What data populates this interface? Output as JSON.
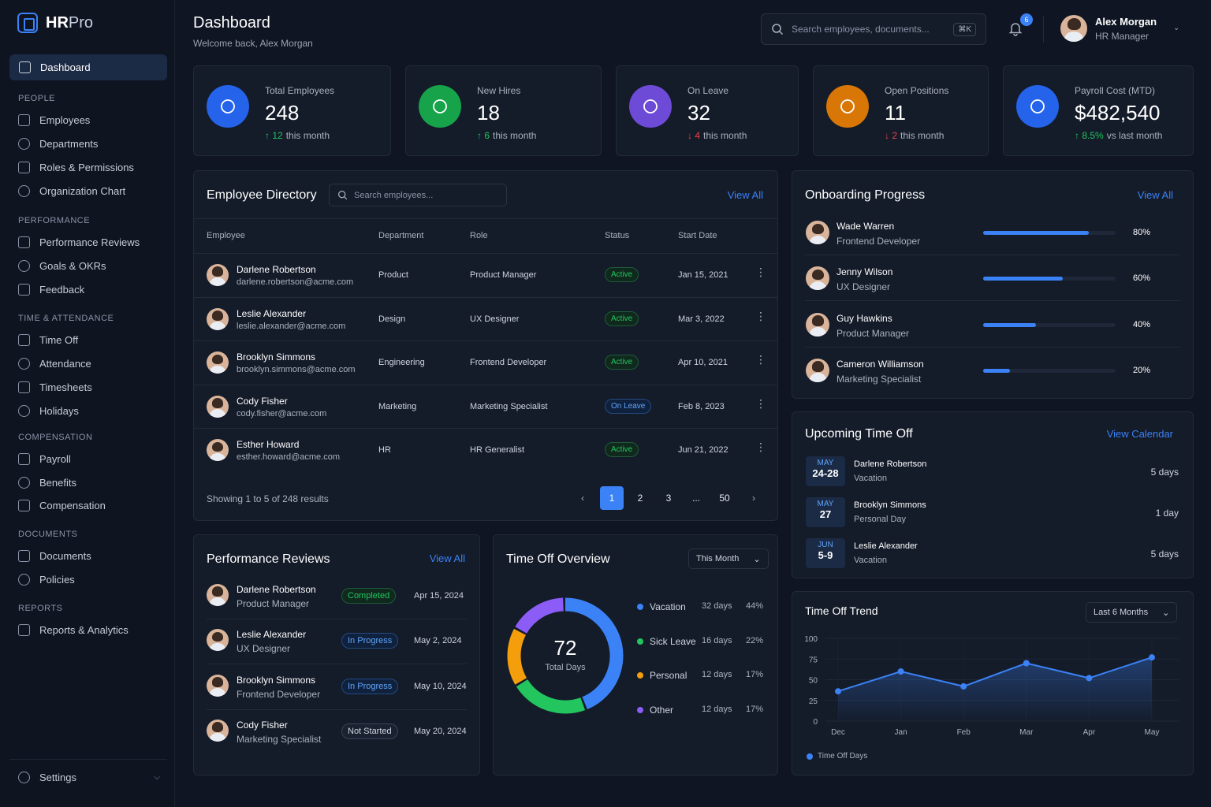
{
  "brand": {
    "name_bold": "HR",
    "name_light": "Pro"
  },
  "nav": {
    "active": "Dashboard",
    "sections": [
      {
        "title": "PEOPLE",
        "items": [
          "Employees",
          "Departments",
          "Roles & Permissions",
          "Organization Chart"
        ]
      },
      {
        "title": "PERFORMANCE",
        "items": [
          "Performance Reviews",
          "Goals & OKRs",
          "Feedback"
        ]
      },
      {
        "title": "TIME & ATTENDANCE",
        "items": [
          "Time Off",
          "Attendance",
          "Timesheets",
          "Holidays"
        ]
      },
      {
        "title": "COMPENSATION",
        "items": [
          "Payroll",
          "Benefits",
          "Compensation"
        ]
      },
      {
        "title": "DOCUMENTS",
        "items": [
          "Documents",
          "Policies"
        ]
      },
      {
        "title": "REPORTS",
        "items": [
          "Reports & Analytics"
        ]
      }
    ],
    "settings": "Settings"
  },
  "header": {
    "title": "Dashboard",
    "subtitle": "Welcome back, Alex Morgan",
    "search_placeholder": "Search employees, documents...",
    "shortcut": "⌘K",
    "notifications": "6",
    "user_name": "Alex Morgan",
    "user_role": "HR Manager"
  },
  "stats": [
    {
      "label": "Total Employees",
      "value": "248",
      "delta": "12",
      "delta_text": "this month",
      "dir": "up",
      "color": "#2563eb",
      "icon": "users-icon"
    },
    {
      "label": "New Hires",
      "value": "18",
      "delta": "6",
      "delta_text": "this month",
      "dir": "up",
      "color": "#16a34a",
      "icon": "user-plus-icon"
    },
    {
      "label": "On Leave",
      "value": "32",
      "delta": "4",
      "delta_text": "this month",
      "dir": "down",
      "color": "#6d4bd6",
      "icon": "calendar-icon"
    },
    {
      "label": "Open Positions",
      "value": "11",
      "delta": "2",
      "delta_text": "this month",
      "dir": "down",
      "color": "#d97706",
      "icon": "clock-icon"
    },
    {
      "label": "Payroll Cost (MTD)",
      "value": "$482,540",
      "delta": "8.5%",
      "delta_text": "vs last month",
      "dir": "up",
      "color": "#2563eb",
      "icon": "dollar-icon"
    }
  ],
  "directory": {
    "title": "Employee Directory",
    "search_placeholder": "Search employees...",
    "view_all": "View All",
    "columns": [
      "Employee",
      "Department",
      "Role",
      "Status",
      "Start Date"
    ],
    "rows": [
      {
        "name": "Darlene Robertson",
        "email": "darlene.robertson@acme.com",
        "dept": "Product",
        "role": "Product Manager",
        "status": "Active",
        "start": "Jan 15, 2021"
      },
      {
        "name": "Leslie Alexander",
        "email": "leslie.alexander@acme.com",
        "dept": "Design",
        "role": "UX Designer",
        "status": "Active",
        "start": "Mar 3, 2022"
      },
      {
        "name": "Brooklyn Simmons",
        "email": "brooklyn.simmons@acme.com",
        "dept": "Engineering",
        "role": "Frontend Developer",
        "status": "Active",
        "start": "Apr 10, 2021"
      },
      {
        "name": "Cody Fisher",
        "email": "cody.fisher@acme.com",
        "dept": "Marketing",
        "role": "Marketing Specialist",
        "status": "On Leave",
        "start": "Feb 8, 2023"
      },
      {
        "name": "Esther Howard",
        "email": "esther.howard@acme.com",
        "dept": "HR",
        "role": "HR Generalist",
        "status": "Active",
        "start": "Jun 21, 2022"
      }
    ],
    "showing": "Showing 1 to 5 of 248 results",
    "pages": [
      "1",
      "2",
      "3",
      "...",
      "50"
    ]
  },
  "onboarding": {
    "title": "Onboarding Progress",
    "view_all": "View All",
    "items": [
      {
        "name": "Wade Warren",
        "role": "Frontend Developer",
        "progress": 80,
        "label": "80%"
      },
      {
        "name": "Jenny Wilson",
        "role": "UX Designer",
        "progress": 60,
        "label": "60%"
      },
      {
        "name": "Guy Hawkins",
        "role": "Product Manager",
        "progress": 40,
        "label": "40%"
      },
      {
        "name": "Cameron Williamson",
        "role": "Marketing Specialist",
        "progress": 20,
        "label": "20%"
      }
    ]
  },
  "upcoming": {
    "title": "Upcoming Time Off",
    "link": "View Calendar",
    "items": [
      {
        "month": "MAY",
        "days": "24-28",
        "name": "Darlene Robertson",
        "type": "Vacation",
        "duration": "5 days"
      },
      {
        "month": "MAY",
        "days": "27",
        "name": "Brooklyn Simmons",
        "type": "Personal Day",
        "duration": "1 day"
      },
      {
        "month": "JUN",
        "days": "5-9",
        "name": "Leslie Alexander",
        "type": "Vacation",
        "duration": "5 days"
      }
    ]
  },
  "reviews": {
    "title": "Performance Reviews",
    "view_all": "View All",
    "items": [
      {
        "name": "Darlene Robertson",
        "role": "Product Manager",
        "status": "Completed",
        "date": "Apr 15, 2024"
      },
      {
        "name": "Leslie Alexander",
        "role": "UX Designer",
        "status": "In Progress",
        "date": "May 2, 2024"
      },
      {
        "name": "Brooklyn Simmons",
        "role": "Frontend Developer",
        "status": "In Progress",
        "date": "May 10, 2024"
      },
      {
        "name": "Cody Fisher",
        "role": "Marketing Specialist",
        "status": "Not Started",
        "date": "May 20, 2024"
      }
    ]
  },
  "timeoff_overview": {
    "title": "Time Off Overview",
    "period": "This Month",
    "total": "72",
    "total_label": "Total Days",
    "chart_data": {
      "type": "pie",
      "categories": [
        "Vacation",
        "Sick Leave",
        "Personal",
        "Other"
      ],
      "values": [
        32,
        16,
        12,
        12
      ],
      "days_labels": [
        "32 days",
        "16 days",
        "12 days",
        "12 days"
      ],
      "pct_labels": [
        "44%",
        "22%",
        "17%",
        "17%"
      ],
      "colors": [
        "#3b82f6",
        "#22c55e",
        "#f59e0b",
        "#8b5cf6"
      ]
    }
  },
  "trend": {
    "title": "Time Off Trend",
    "period": "Last 6 Months",
    "chart_data": {
      "type": "area",
      "categories": [
        "Dec",
        "Jan",
        "Feb",
        "Mar",
        "Apr",
        "May"
      ],
      "series": [
        {
          "name": "Time Off Days",
          "values": [
            36,
            60,
            42,
            70,
            52,
            77
          ]
        }
      ],
      "yticks": [
        "100",
        "75",
        "50",
        "25",
        "0"
      ],
      "ylim": [
        0,
        100
      ],
      "color": "#3b82f6"
    }
  }
}
